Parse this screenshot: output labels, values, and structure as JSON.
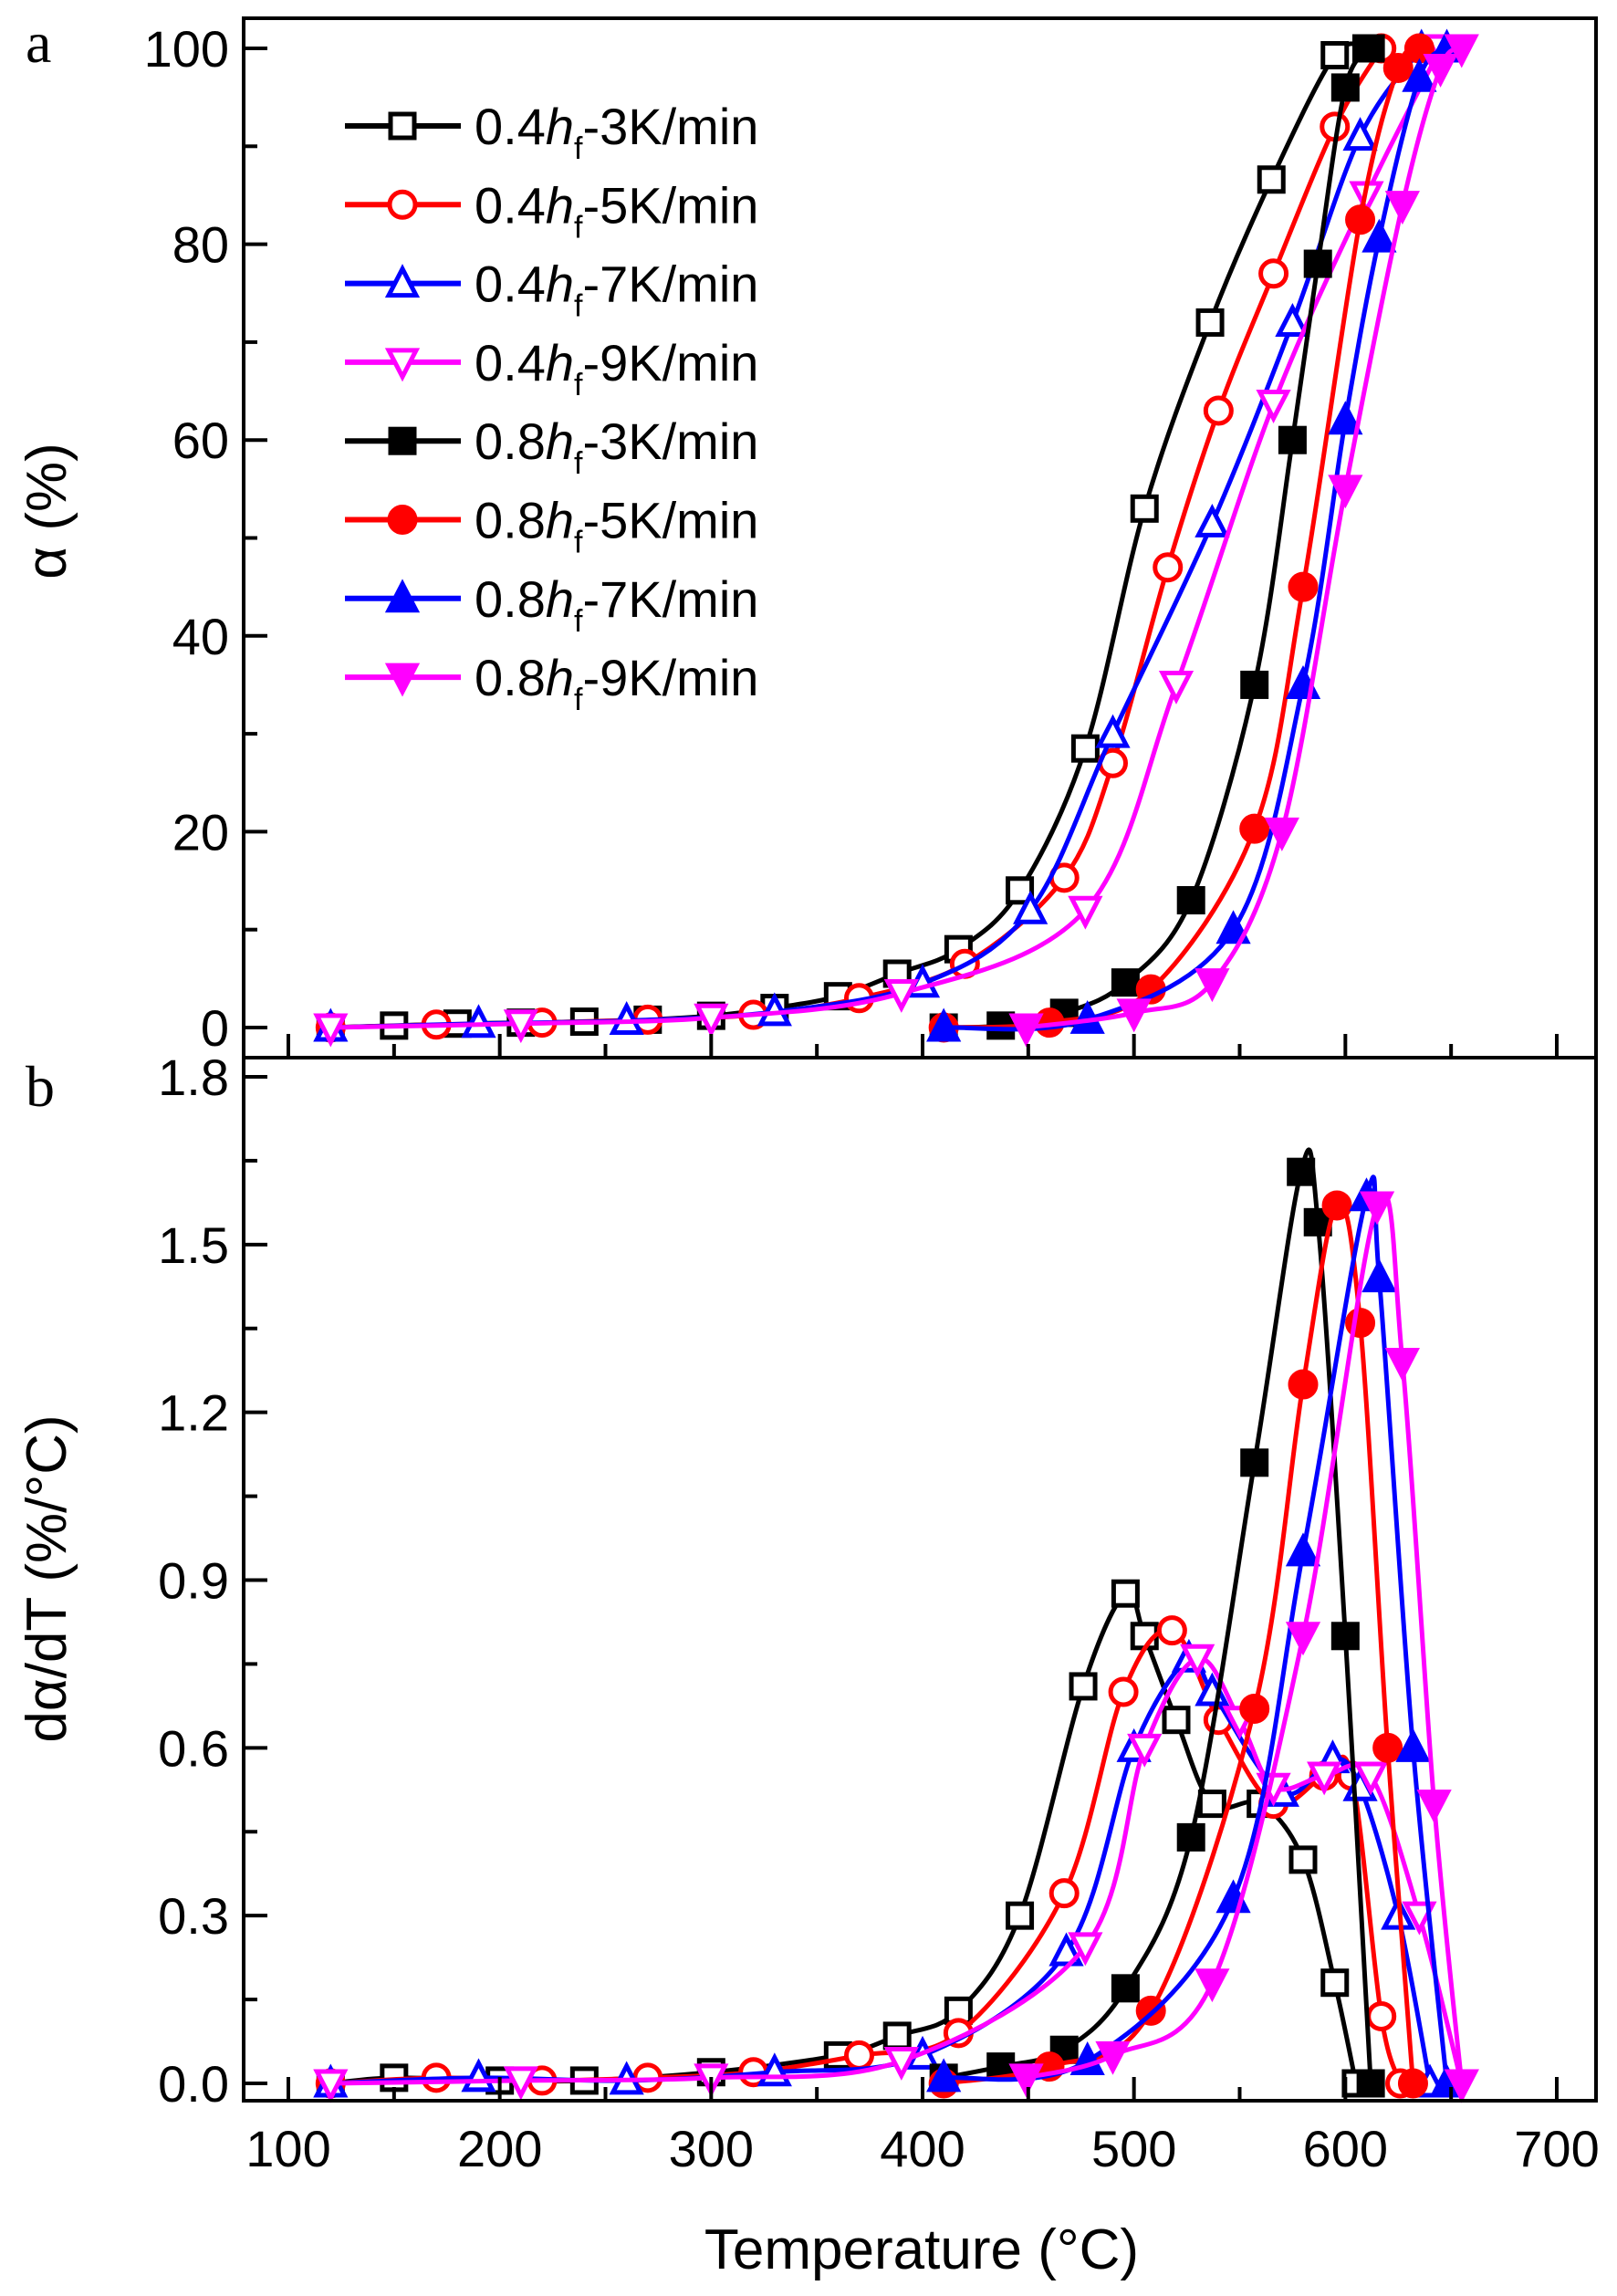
{
  "chart_data": [
    {
      "type": "line",
      "panel_label": "a",
      "xlabel": "Temperature (°C)",
      "ylabel": "α (%)",
      "xlim": [
        100,
        700
      ],
      "ylim": [
        0,
        100
      ],
      "xticks": [
        100,
        200,
        300,
        400,
        500,
        600,
        700
      ],
      "yticks": [
        0,
        20,
        40,
        60,
        80,
        100
      ],
      "grid": false,
      "legend_position": "top-left",
      "series": [
        {
          "name": "0.4hf-3K/min",
          "label_prefix": "0.4",
          "label_suffix": "-3K/min",
          "color": "#000000",
          "marker": "square-open",
          "points": [
            [
              120,
              0
            ],
            [
              150,
              0.2
            ],
            [
              180,
              0.4
            ],
            [
              210,
              0.5
            ],
            [
              240,
              0.6
            ],
            [
              270,
              0.8
            ],
            [
              300,
              1.2
            ],
            [
              330,
              2
            ],
            [
              360,
              3.2
            ],
            [
              388,
              5.5
            ],
            [
              417,
              8
            ],
            [
              446,
              14
            ],
            [
              477,
              28.5
            ],
            [
              505,
              53
            ],
            [
              536,
              72
            ],
            [
              565,
              86.6
            ],
            [
              595,
              99.3
            ],
            [
              610,
              100
            ]
          ]
        },
        {
          "name": "0.4hf-5K/min",
          "label_prefix": "0.4",
          "label_suffix": "-5K/min",
          "color": "#ff0000",
          "marker": "circle-open",
          "points": [
            [
              120,
              0
            ],
            [
              170,
              0.3
            ],
            [
              220,
              0.5
            ],
            [
              270,
              0.8
            ],
            [
              320,
              1.3
            ],
            [
              370,
              3
            ],
            [
              420,
              6.5
            ],
            [
              467,
              15.3
            ],
            [
              490,
              27
            ],
            [
              516,
              47
            ],
            [
              540,
              63
            ],
            [
              566,
              77
            ],
            [
              595,
              92
            ],
            [
              617,
              100
            ]
          ]
        },
        {
          "name": "0.4hf-7K/min",
          "label_prefix": "0.4",
          "label_suffix": "-7K/min",
          "color": "#0000ff",
          "marker": "triangle-up-open",
          "points": [
            [
              120,
              0
            ],
            [
              190,
              0.4
            ],
            [
              260,
              0.7
            ],
            [
              330,
              1.6
            ],
            [
              400,
              4.5
            ],
            [
              451,
              12
            ],
            [
              490,
              30
            ],
            [
              537,
              51.5
            ],
            [
              575,
              72
            ],
            [
              607,
              91
            ],
            [
              636,
              100
            ]
          ]
        },
        {
          "name": "0.4hf-9K/min",
          "label_prefix": "0.4",
          "label_suffix": "-9K/min",
          "color": "#ff00ff",
          "marker": "triangle-down-open",
          "points": [
            [
              120,
              0
            ],
            [
              210,
              0.4
            ],
            [
              300,
              1
            ],
            [
              390,
              3.5
            ],
            [
              477,
              12
            ],
            [
              520,
              35
            ],
            [
              566,
              63.7
            ],
            [
              610,
              85
            ],
            [
              645,
              100
            ]
          ]
        },
        {
          "name": "0.8hf-3K/min",
          "label_prefix": "0.8",
          "label_suffix": "-3K/min",
          "color": "#000000",
          "marker": "square-filled",
          "points": [
            [
              410,
              0
            ],
            [
              437,
              0.2
            ],
            [
              467,
              1.5
            ],
            [
              496,
              4.6
            ],
            [
              527,
              13
            ],
            [
              557,
              35
            ],
            [
              575,
              60
            ],
            [
              587,
              78
            ],
            [
              600,
              96
            ],
            [
              612,
              100
            ]
          ]
        },
        {
          "name": "0.8hf-5K/min",
          "label_prefix": "0.8",
          "label_suffix": "-5K/min",
          "color": "#ff0000",
          "marker": "circle-filled",
          "points": [
            [
              410,
              0
            ],
            [
              460,
              0.5
            ],
            [
              508,
              3.9
            ],
            [
              557,
              20.3
            ],
            [
              580,
              45
            ],
            [
              607,
              82.5
            ],
            [
              625,
              98
            ],
            [
              635,
              100
            ]
          ]
        },
        {
          "name": "0.8hf-7K/min",
          "label_prefix": "0.8",
          "label_suffix": "-7K/min",
          "color": "#0000ff",
          "marker": "triangle-up-filled",
          "points": [
            [
              410,
              0
            ],
            [
              478,
              0.8
            ],
            [
              547,
              10
            ],
            [
              580,
              35
            ],
            [
              600,
              62
            ],
            [
              616,
              80.6
            ],
            [
              635,
              97
            ],
            [
              648,
              100
            ]
          ]
        },
        {
          "name": "0.8hf-9K/min",
          "label_prefix": "0.8",
          "label_suffix": "-9K/min",
          "color": "#ff00ff",
          "marker": "triangle-down-filled",
          "points": [
            [
              449,
              0
            ],
            [
              500,
              1.5
            ],
            [
              537,
              4.6
            ],
            [
              570,
              20
            ],
            [
              600,
              55
            ],
            [
              627,
              84
            ],
            [
              645,
              98
            ],
            [
              655,
              100
            ]
          ]
        }
      ]
    },
    {
      "type": "line",
      "panel_label": "b",
      "xlabel": "Temperature (°C)",
      "ylabel": "dα/dT (%/°C)",
      "xlim": [
        100,
        700
      ],
      "ylim": [
        0,
        1.8
      ],
      "xticks": [
        100,
        200,
        300,
        400,
        500,
        600,
        700
      ],
      "yticks": [
        "0.0",
        "0.3",
        "0.6",
        "0.9",
        "1.2",
        "1.5",
        "1.8"
      ],
      "grid": false,
      "series": [
        {
          "name": "0.4hf-3K/min",
          "color": "#000000",
          "marker": "square-open",
          "points": [
            [
              120,
              0
            ],
            [
              150,
              0.01
            ],
            [
              200,
              0.005
            ],
            [
              240,
              0.005
            ],
            [
              300,
              0.02
            ],
            [
              360,
              0.05
            ],
            [
              388,
              0.085
            ],
            [
              417,
              0.13
            ],
            [
              446,
              0.3
            ],
            [
              476,
              0.71
            ],
            [
              496,
              0.876
            ],
            [
              505,
              0.8
            ],
            [
              520,
              0.65
            ],
            [
              537,
              0.5
            ],
            [
              560,
              0.5
            ],
            [
              580,
              0.4
            ],
            [
              595,
              0.18
            ],
            [
              605,
              0
            ]
          ]
        },
        {
          "name": "0.4hf-5K/min",
          "color": "#ff0000",
          "marker": "circle-open",
          "points": [
            [
              120,
              0
            ],
            [
              170,
              0.01
            ],
            [
              220,
              0.005
            ],
            [
              270,
              0.01
            ],
            [
              320,
              0.02
            ],
            [
              370,
              0.05
            ],
            [
              417,
              0.09
            ],
            [
              467,
              0.34
            ],
            [
              495,
              0.7
            ],
            [
              518,
              0.81
            ],
            [
              540,
              0.65
            ],
            [
              566,
              0.5
            ],
            [
              590,
              0.55
            ],
            [
              603,
              0.55
            ],
            [
              617,
              0.12
            ],
            [
              626,
              0
            ]
          ]
        },
        {
          "name": "0.4hf-7K/min",
          "color": "#0000ff",
          "marker": "triangle-up-open",
          "points": [
            [
              120,
              0
            ],
            [
              190,
              0.01
            ],
            [
              260,
              0.005
            ],
            [
              330,
              0.02
            ],
            [
              400,
              0.05
            ],
            [
              468,
              0.235
            ],
            [
              500,
              0.6
            ],
            [
              526,
              0.76
            ],
            [
              537,
              0.7
            ],
            [
              570,
              0.52
            ],
            [
              594,
              0.58
            ],
            [
              607,
              0.53
            ],
            [
              625,
              0.3
            ],
            [
              640,
              0
            ]
          ]
        },
        {
          "name": "0.4hf-9K/min",
          "color": "#ff00ff",
          "marker": "triangle-down-open",
          "points": [
            [
              120,
              0
            ],
            [
              210,
              0.005
            ],
            [
              300,
              0.01
            ],
            [
              390,
              0.04
            ],
            [
              477,
              0.245
            ],
            [
              505,
              0.6
            ],
            [
              530,
              0.76
            ],
            [
              550,
              0.65
            ],
            [
              566,
              0.53
            ],
            [
              590,
              0.55
            ],
            [
              612,
              0.55
            ],
            [
              635,
              0.3
            ],
            [
              655,
              0
            ]
          ]
        },
        {
          "name": "0.8hf-3K/min",
          "color": "#000000",
          "marker": "square-filled",
          "points": [
            [
              410,
              0.01
            ],
            [
              437,
              0.03
            ],
            [
              467,
              0.06
            ],
            [
              496,
              0.17
            ],
            [
              527,
              0.44
            ],
            [
              557,
              1.11
            ],
            [
              579,
              1.63
            ],
            [
              587,
              1.54
            ],
            [
              600,
              0.8
            ],
            [
              612,
              0
            ]
          ]
        },
        {
          "name": "0.8hf-5K/min",
          "color": "#ff0000",
          "marker": "circle-filled",
          "points": [
            [
              410,
              0
            ],
            [
              460,
              0.03
            ],
            [
              508,
              0.13
            ],
            [
              557,
              0.67
            ],
            [
              580,
              1.25
            ],
            [
              596,
              1.57
            ],
            [
              607,
              1.36
            ],
            [
              620,
              0.6
            ],
            [
              632,
              0
            ]
          ]
        },
        {
          "name": "0.8hf-7K/min",
          "color": "#0000ff",
          "marker": "triangle-up-filled",
          "points": [
            [
              410,
              0.01
            ],
            [
              478,
              0.04
            ],
            [
              547,
              0.33
            ],
            [
              580,
              0.95
            ],
            [
              610,
              1.585
            ],
            [
              616,
              1.44
            ],
            [
              632,
              0.6
            ],
            [
              648,
              0
            ]
          ]
        },
        {
          "name": "0.8hf-9K/min",
          "color": "#ff00ff",
          "marker": "triangle-down-filled",
          "points": [
            [
              449,
              0.01
            ],
            [
              490,
              0.05
            ],
            [
              537,
              0.18
            ],
            [
              580,
              0.8
            ],
            [
              615,
              1.57
            ],
            [
              627,
              1.29
            ],
            [
              642,
              0.5
            ],
            [
              655,
              0
            ]
          ]
        }
      ]
    }
  ],
  "legend": {
    "italic_symbol": "h",
    "subscript": "f"
  }
}
